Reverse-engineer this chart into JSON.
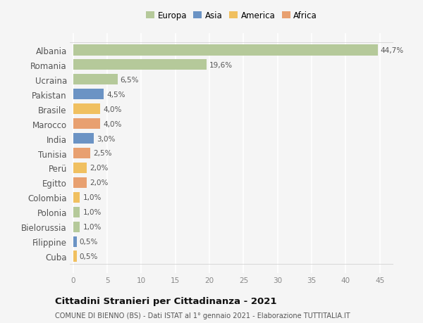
{
  "countries": [
    "Albania",
    "Romania",
    "Ucraina",
    "Pakistan",
    "Brasile",
    "Marocco",
    "India",
    "Tunisia",
    "Perü",
    "Egitto",
    "Colombia",
    "Polonia",
    "Bielorussia",
    "Filippine",
    "Cuba"
  ],
  "values": [
    44.7,
    19.6,
    6.5,
    4.5,
    4.0,
    4.0,
    3.0,
    2.5,
    2.0,
    2.0,
    1.0,
    1.0,
    1.0,
    0.5,
    0.5
  ],
  "labels": [
    "44,7%",
    "19,6%",
    "6,5%",
    "4,5%",
    "4,0%",
    "4,0%",
    "3,0%",
    "2,5%",
    "2,0%",
    "2,0%",
    "1,0%",
    "1,0%",
    "1,0%",
    "0,5%",
    "0,5%"
  ],
  "continents": [
    "Europa",
    "Europa",
    "Europa",
    "Asia",
    "America",
    "Africa",
    "Asia",
    "Africa",
    "America",
    "Africa",
    "America",
    "Europa",
    "Europa",
    "Asia",
    "America"
  ],
  "continent_colors": {
    "Europa": "#b5c99a",
    "Asia": "#6b93c4",
    "America": "#f0c060",
    "Africa": "#e8a070"
  },
  "legend_order": [
    "Europa",
    "Asia",
    "America",
    "Africa"
  ],
  "title": "Cittadini Stranieri per Cittadinanza - 2021",
  "subtitle": "COMUNE DI BIENNO (BS) - Dati ISTAT al 1° gennaio 2021 - Elaborazione TUTTITALIA.IT",
  "xlim": [
    -0.5,
    47
  ],
  "xticks": [
    0,
    5,
    10,
    15,
    20,
    25,
    30,
    35,
    40,
    45
  ],
  "background_color": "#f5f5f5",
  "grid_color": "#ffffff",
  "bar_height": 0.75
}
